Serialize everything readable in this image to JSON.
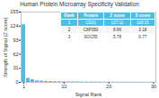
{
  "chart_data": {
    "type": "bar",
    "title": "Human Protein Microarray Specificity Validation",
    "xlabel": "Signal Rank",
    "ylabel": "Strength of Signal (Z score)",
    "x": [
      1,
      2,
      3,
      4,
      5,
      6,
      7,
      8,
      9,
      10,
      11,
      12,
      13,
      14,
      15,
      16,
      17,
      18,
      19,
      20,
      21,
      22,
      23,
      24,
      25,
      26,
      27,
      28,
      29,
      30
    ],
    "values": [
      127.11,
      8.96,
      5.78,
      3.5,
      2.8,
      2.2,
      1.9,
      1.7,
      1.5,
      1.3,
      1.2,
      1.1,
      1.0,
      0.9,
      0.85,
      0.8,
      0.75,
      0.7,
      0.65,
      0.62,
      0.6,
      0.58,
      0.56,
      0.54,
      0.52,
      0.5,
      0.48,
      0.46,
      0.44,
      0.42
    ],
    "color": "#4dbde8",
    "xlim": [
      0.4,
      30.5
    ],
    "xticks": [
      1,
      10,
      20,
      30
    ],
    "ylim": [
      0,
      155
    ],
    "yticks": [
      0,
      31,
      62,
      93,
      124,
      155
    ],
    "grid": false,
    "table": [
      [
        "Rank",
        "Protein",
        "Z score",
        "S score"
      ],
      [
        "1",
        "CD31",
        "127.11",
        "118.15"
      ],
      [
        "2",
        "C8P350",
        "8.96",
        "3.18"
      ],
      [
        "3",
        "SOC55",
        "5.78",
        "0.77"
      ]
    ]
  }
}
